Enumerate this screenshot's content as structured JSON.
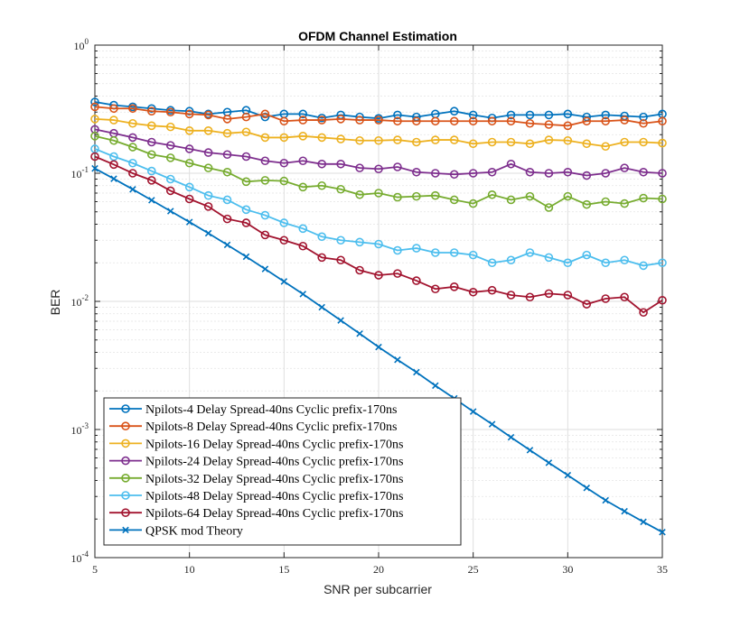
{
  "chart_data": {
    "type": "line",
    "title": "OFDM Channel Estimation",
    "xlabel": "SNR per subcarrier",
    "ylabel": "BER",
    "xlim": [
      5,
      35
    ],
    "ylim": [
      0.0001,
      1
    ],
    "yscale": "log",
    "grid": true,
    "legend_position": "bottom-left",
    "x_ticks": [
      {
        "value": 5,
        "label": "5"
      },
      {
        "value": 10,
        "label": "10"
      },
      {
        "value": 15,
        "label": "15"
      },
      {
        "value": 20,
        "label": "20"
      },
      {
        "value": 25,
        "label": "25"
      },
      {
        "value": 30,
        "label": "30"
      },
      {
        "value": 35,
        "label": "35"
      }
    ],
    "y_ticks": [
      {
        "value": 1,
        "base": "10",
        "exp": "0"
      },
      {
        "value": 0.1,
        "base": "10",
        "exp": "-1"
      },
      {
        "value": 0.01,
        "base": "10",
        "exp": "-2"
      },
      {
        "value": 0.001,
        "base": "10",
        "exp": "-3"
      },
      {
        "value": 0.0001,
        "base": "10",
        "exp": "-4"
      }
    ],
    "x": [
      5,
      6,
      7,
      8,
      9,
      10,
      11,
      12,
      13,
      14,
      15,
      16,
      17,
      18,
      19,
      20,
      21,
      22,
      23,
      24,
      25,
      26,
      27,
      28,
      29,
      30,
      31,
      32,
      33,
      34,
      35
    ],
    "series": [
      {
        "name": "Npilots-4 Delay Spread-40ns Cyclic prefix-170ns",
        "color": "#0072BD",
        "marker": "circle",
        "values": [
          0.36,
          0.34,
          0.33,
          0.32,
          0.31,
          0.305,
          0.29,
          0.3,
          0.31,
          0.275,
          0.29,
          0.29,
          0.27,
          0.285,
          0.275,
          0.268,
          0.285,
          0.275,
          0.29,
          0.305,
          0.285,
          0.27,
          0.285,
          0.285,
          0.285,
          0.29,
          0.275,
          0.285,
          0.28,
          0.275,
          0.29
        ]
      },
      {
        "name": "Npilots-8 Delay Spread-40ns Cyclic prefix-170ns",
        "color": "#D95319",
        "marker": "circle",
        "values": [
          0.33,
          0.32,
          0.32,
          0.305,
          0.3,
          0.29,
          0.285,
          0.265,
          0.275,
          0.29,
          0.255,
          0.26,
          0.26,
          0.265,
          0.26,
          0.26,
          0.255,
          0.255,
          0.255,
          0.255,
          0.255,
          0.255,
          0.255,
          0.245,
          0.24,
          0.235,
          0.255,
          0.255,
          0.26,
          0.245,
          0.255
        ]
      },
      {
        "name": "Npilots-16 Delay Spread-40ns Cyclic prefix-170ns",
        "color": "#EDB120",
        "marker": "circle",
        "values": [
          0.265,
          0.26,
          0.245,
          0.235,
          0.23,
          0.215,
          0.215,
          0.205,
          0.21,
          0.19,
          0.19,
          0.195,
          0.19,
          0.185,
          0.18,
          0.18,
          0.182,
          0.175,
          0.182,
          0.182,
          0.17,
          0.175,
          0.175,
          0.17,
          0.182,
          0.18,
          0.17,
          0.162,
          0.175,
          0.175,
          0.172
        ]
      },
      {
        "name": "Npilots-24 Delay Spread-40ns Cyclic prefix-170ns",
        "color": "#7E2F8E",
        "marker": "circle",
        "values": [
          0.22,
          0.205,
          0.19,
          0.175,
          0.165,
          0.155,
          0.145,
          0.14,
          0.135,
          0.125,
          0.12,
          0.125,
          0.118,
          0.118,
          0.11,
          0.108,
          0.112,
          0.102,
          0.1,
          0.098,
          0.1,
          0.102,
          0.118,
          0.102,
          0.1,
          0.102,
          0.096,
          0.1,
          0.11,
          0.102,
          0.1
        ]
      },
      {
        "name": "Npilots-32 Delay Spread-40ns Cyclic prefix-170ns",
        "color": "#77AC30",
        "marker": "circle",
        "values": [
          0.195,
          0.18,
          0.16,
          0.14,
          0.132,
          0.12,
          0.11,
          0.102,
          0.086,
          0.088,
          0.087,
          0.078,
          0.08,
          0.075,
          0.068,
          0.07,
          0.065,
          0.066,
          0.067,
          0.062,
          0.058,
          0.068,
          0.062,
          0.066,
          0.054,
          0.066,
          0.057,
          0.06,
          0.058,
          0.064,
          0.063
        ]
      },
      {
        "name": "Npilots-48 Delay Spread-40ns Cyclic prefix-170ns",
        "color": "#4DBEEE",
        "marker": "circle",
        "values": [
          0.155,
          0.135,
          0.12,
          0.104,
          0.09,
          0.078,
          0.067,
          0.062,
          0.052,
          0.047,
          0.041,
          0.037,
          0.032,
          0.03,
          0.029,
          0.028,
          0.025,
          0.026,
          0.024,
          0.024,
          0.023,
          0.02,
          0.021,
          0.024,
          0.022,
          0.02,
          0.023,
          0.02,
          0.021,
          0.019,
          0.02
        ]
      },
      {
        "name": "Npilots-64 Delay Spread-40ns Cyclic prefix-170ns",
        "color": "#A2142F",
        "marker": "circle",
        "values": [
          0.135,
          0.117,
          0.1,
          0.088,
          0.073,
          0.063,
          0.055,
          0.044,
          0.041,
          0.033,
          0.03,
          0.027,
          0.022,
          0.021,
          0.0175,
          0.016,
          0.0165,
          0.0145,
          0.0125,
          0.013,
          0.0118,
          0.0122,
          0.0112,
          0.0108,
          0.0115,
          0.0112,
          0.0095,
          0.0105,
          0.0108,
          0.0082,
          0.0102
        ]
      },
      {
        "name": "QPSK mod Theory",
        "color": "#0072BD",
        "marker": "x",
        "values": [
          0.109,
          0.0906,
          0.0749,
          0.0616,
          0.0506,
          0.0416,
          0.034,
          0.0276,
          0.0223,
          0.0179,
          0.0143,
          0.0114,
          0.009,
          0.0071,
          0.0056,
          0.0044,
          0.0035,
          0.0028,
          0.0022,
          0.00175,
          0.00138,
          0.0011,
          0.00087,
          0.00069,
          0.00055,
          0.00044,
          0.00035,
          0.00028,
          0.00023,
          0.00019,
          0.000158
        ]
      }
    ]
  }
}
